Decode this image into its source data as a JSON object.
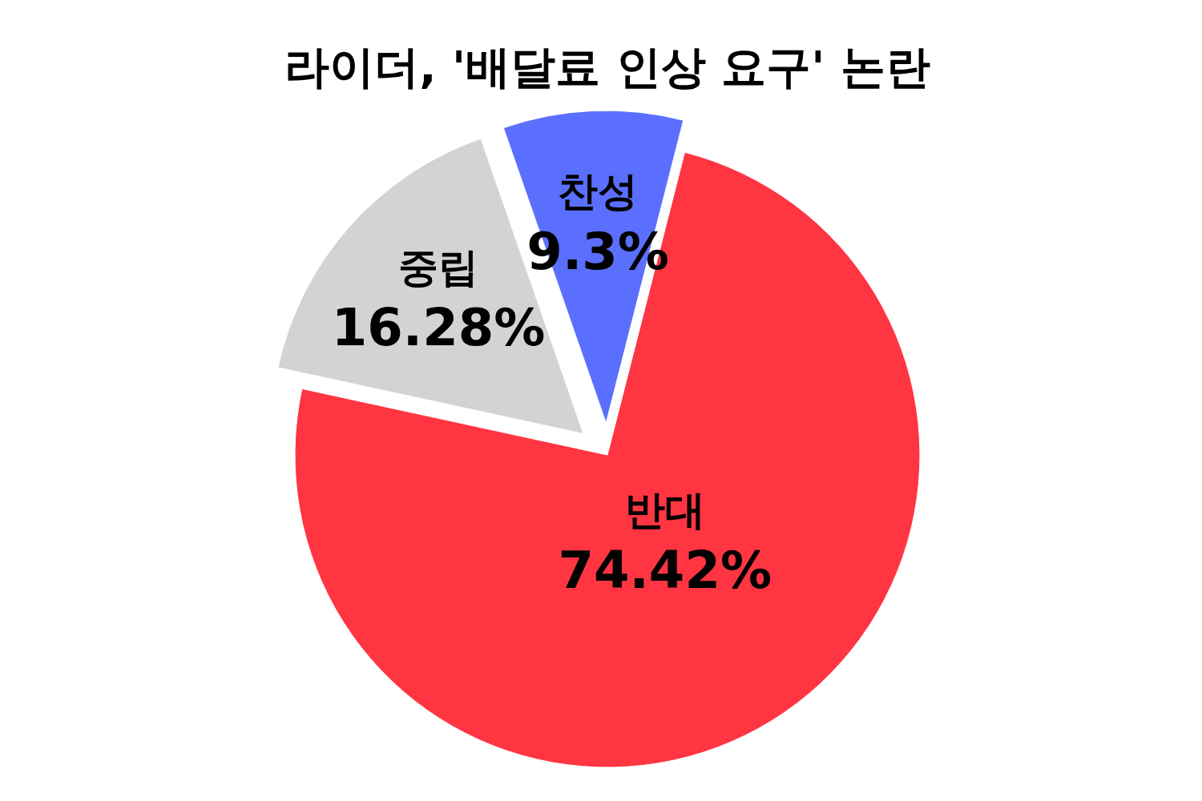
{
  "chart_data": {
    "type": "pie",
    "title": "라이더, '배달료 인상 요구' 논란",
    "categories": [
      "반대",
      "중립",
      "찬성"
    ],
    "values": [
      74.42,
      16.28,
      9.3
    ],
    "value_labels": [
      "74.42%",
      "16.28%",
      "9.3%"
    ],
    "colors": [
      "#ff3542",
      "#d3d3d3",
      "#5b6fff"
    ]
  }
}
